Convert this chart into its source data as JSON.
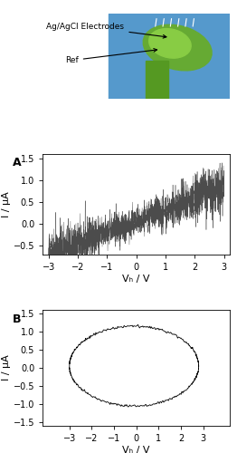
{
  "panel_A": {
    "label": "A",
    "xlim": [
      -3.2,
      3.2
    ],
    "ylim": [
      -0.7,
      1.6
    ],
    "xticks": [
      -3,
      -2,
      -1,
      0,
      1,
      2,
      3
    ],
    "yticks": [
      -0.5,
      0.0,
      0.5,
      1.0,
      1.5
    ],
    "xlabel": "Vₕ / V",
    "ylabel": "I / μA",
    "noise_seed": 42,
    "n_points": 2000
  },
  "panel_B": {
    "label": "B",
    "xlim": [
      -4.2,
      4.2
    ],
    "ylim": [
      -1.6,
      1.6
    ],
    "xticks": [
      -3,
      -2,
      -1,
      0,
      1,
      2,
      3
    ],
    "yticks": [
      -1.5,
      -1.0,
      -0.5,
      0.0,
      0.5,
      1.0,
      1.5
    ],
    "xlabel": "Vₕ / V",
    "ylabel": "I / μA",
    "n_points": 500
  },
  "image_annotation_electrodes": "Ag/AgCl Electrodes",
  "image_annotation_ref": "Ref",
  "background_color": "#ffffff",
  "line_color": "#000000",
  "font_size": 8,
  "label_font_size": 9
}
